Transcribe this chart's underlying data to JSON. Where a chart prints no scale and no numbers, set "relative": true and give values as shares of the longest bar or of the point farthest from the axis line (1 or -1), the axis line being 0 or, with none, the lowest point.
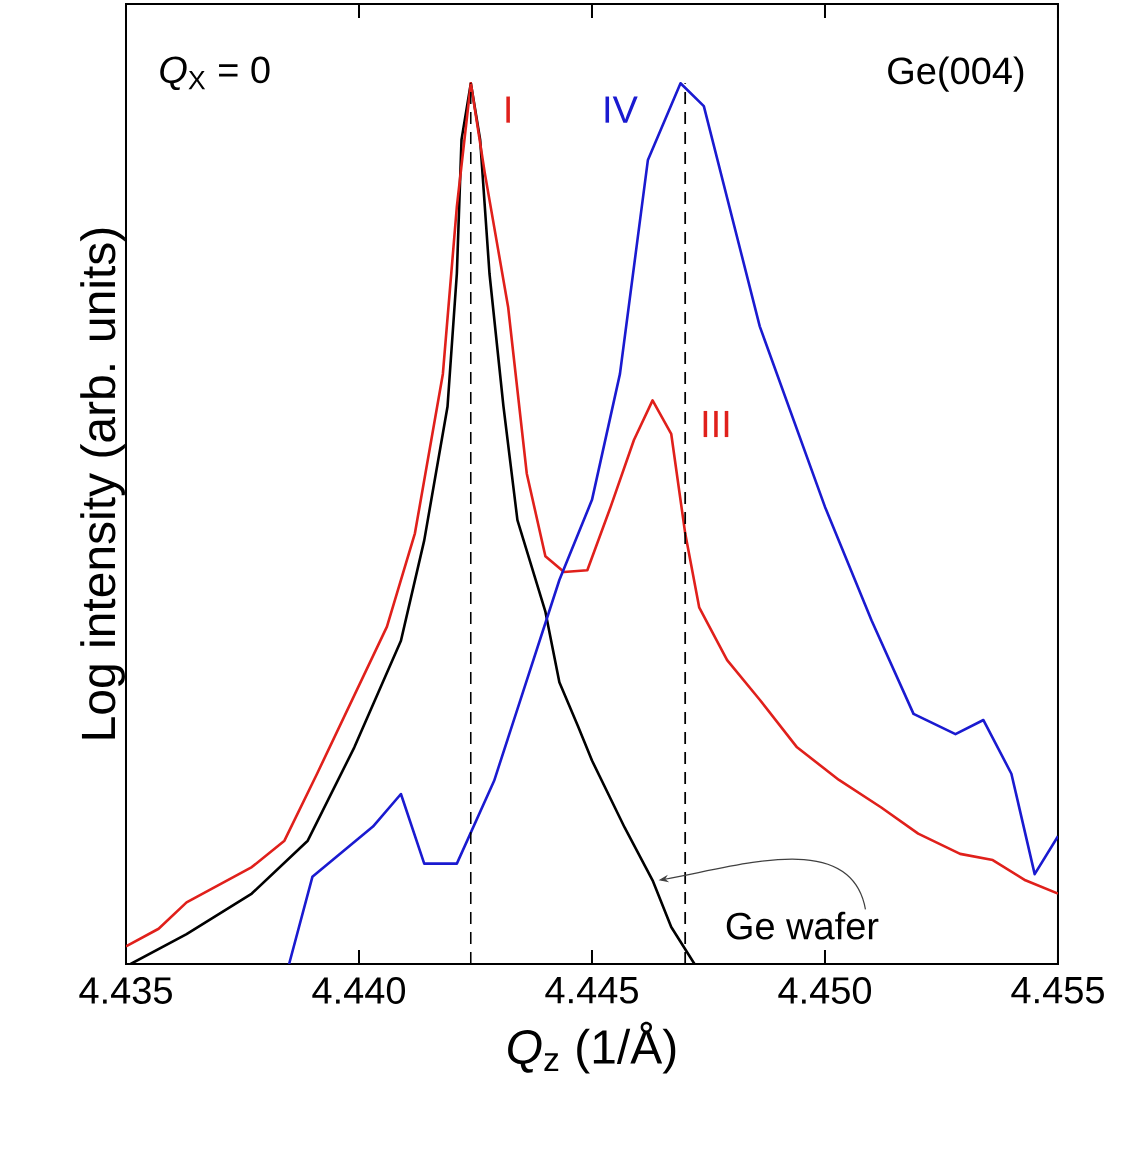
{
  "chart_data": {
    "type": "line",
    "relative": true,
    "xlabel": "*Q*$_{z}$ (1/Å)",
    "ylabel": "Log intensity (arb. units)",
    "xlim": [
      4.435,
      4.455
    ],
    "xticks": [
      {
        "value": 4.435,
        "label": "4.435"
      },
      {
        "value": 4.44,
        "label": "4.440"
      },
      {
        "value": 4.445,
        "label": "4.445"
      },
      {
        "value": 4.45,
        "label": "4.450"
      },
      {
        "value": 4.455,
        "label": "4.455"
      }
    ],
    "series": [
      {
        "name": "Ge wafer",
        "color": "#000000",
        "x": [
          4.4351,
          4.4363,
          4.4377,
          4.4389,
          4.4399,
          4.4409,
          4.4414,
          4.4419,
          4.4421,
          4.4422,
          4.4424,
          4.4426,
          4.4428,
          4.4431,
          4.4434,
          4.444,
          4.4443,
          4.4447,
          4.445,
          4.4457,
          4.4463,
          4.4467,
          4.4472
        ],
        "values": [
          0,
          0.034,
          0.08,
          0.14,
          0.246,
          0.367,
          0.481,
          0.633,
          0.784,
          0.936,
          1.0,
          0.936,
          0.784,
          0.633,
          0.504,
          0.4,
          0.32,
          0.27,
          0.231,
          0.155,
          0.095,
          0.042,
          0
        ]
      },
      {
        "color": "#e0201b",
        "x": [
          4.435,
          4.4357,
          4.4363,
          4.437,
          4.4377,
          4.4384,
          4.4391,
          4.4406,
          4.4412,
          4.4418,
          4.4421,
          4.4424,
          4.4427,
          4.4432,
          4.4436,
          4.444,
          4.4444,
          4.4449,
          4.4454,
          4.4459,
          4.4463,
          4.4467,
          4.447,
          4.4473,
          4.4479,
          4.4486,
          4.4494,
          4.4503,
          4.4512,
          4.452,
          4.4529,
          4.4536,
          4.4543,
          4.455
        ],
        "values": [
          0.02,
          0.04,
          0.07,
          0.09,
          0.11,
          0.14,
          0.216,
          0.383,
          0.489,
          0.67,
          0.86,
          1.0,
          0.898,
          0.746,
          0.557,
          0.463,
          0.445,
          0.447,
          0.519,
          0.595,
          0.64,
          0.602,
          0.489,
          0.405,
          0.345,
          0.3,
          0.246,
          0.209,
          0.178,
          0.148,
          0.125,
          0.118,
          0.095,
          0.08
        ]
      },
      {
        "color": "#1a1ad0",
        "x": [
          4.4385,
          4.439,
          4.4403,
          4.4409,
          4.4414,
          4.4421,
          4.4429,
          4.4443,
          4.445,
          4.4456,
          4.4462,
          4.4469,
          4.4474,
          4.4486,
          4.45,
          4.451,
          4.4519,
          4.4528,
          4.4534,
          4.454,
          4.4545,
          4.455
        ],
        "values": [
          0,
          0.099,
          0.156,
          0.193,
          0.114,
          0.114,
          0.208,
          0.436,
          0.527,
          0.67,
          0.913,
          1.0,
          0.974,
          0.724,
          0.519,
          0.39,
          0.284,
          0.261,
          0.277,
          0.216,
          0.102,
          0.145
        ]
      }
    ],
    "ref_lines": [
      {
        "axis": "x",
        "value": 4.4424,
        "line_style": "dashed",
        "color": "#000000"
      },
      {
        "axis": "x",
        "value": 4.447,
        "line_style": "dashed",
        "color": "#000000"
      }
    ],
    "annotations": [
      "*Q*$_{X}$ = 0",
      "Ge(004)",
      "I",
      "IV",
      "III"
    ],
    "line_style": "solid",
    "marker": "none",
    "grid": false
  }
}
